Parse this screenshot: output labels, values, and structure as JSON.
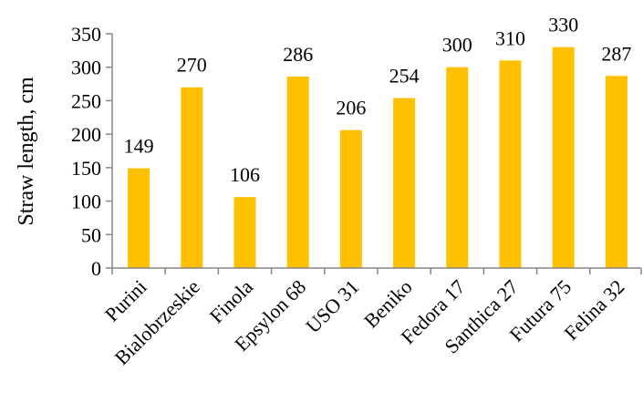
{
  "chart_data": {
    "type": "bar",
    "title": "",
    "xlabel": "",
    "ylabel": "Straw length, cm",
    "ylim": [
      0,
      350
    ],
    "yticks": [
      0,
      50,
      100,
      150,
      200,
      250,
      300,
      350
    ],
    "grid": false,
    "legend": "none",
    "categories": [
      "Purini",
      "Bialobrzeskie",
      "Finola",
      "Epsylon 68",
      "USO 31",
      "Beniko",
      "Fedora 17",
      "Santhica 27",
      "Futura 75",
      "Felina 32"
    ],
    "values": [
      149,
      270,
      106,
      286,
      206,
      254,
      300,
      310,
      330,
      287
    ],
    "data_labels": [
      "149",
      "270",
      "106",
      "286",
      "206",
      "254",
      "300",
      "310",
      "330",
      "287"
    ],
    "bar_color": "#FFC000",
    "axis_color": "#868686"
  }
}
